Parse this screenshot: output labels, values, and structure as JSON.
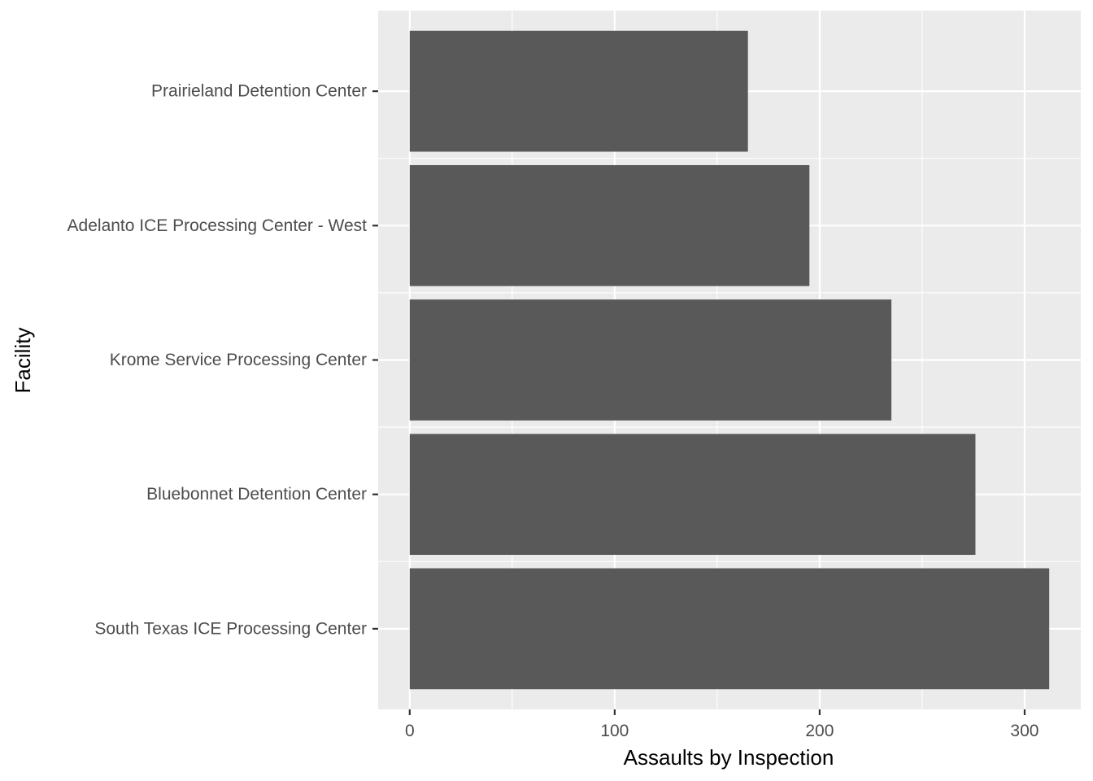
{
  "chart_data": {
    "type": "bar",
    "orientation": "horizontal",
    "categories": [
      "South Texas ICE Processing Center",
      "Bluebonnet Detention Center",
      "Krome Service Processing Center",
      "Adelanto ICE Processing Center - West",
      "Prairieland Detention Center"
    ],
    "values": [
      312,
      276,
      235,
      195,
      165
    ],
    "xlabel": "Assaults by Inspection",
    "ylabel": "Facility",
    "xlim": [
      -15.4,
      327.4
    ],
    "x_ticks": [
      0,
      100,
      200,
      300
    ],
    "x_minor_ticks": [
      50,
      150,
      250
    ],
    "grid": true,
    "colors": {
      "bar": "#595959",
      "panel": "#ebebeb",
      "grid": "#ffffff",
      "tick_text": "#4d4d4d",
      "title_text": "#000000"
    }
  }
}
